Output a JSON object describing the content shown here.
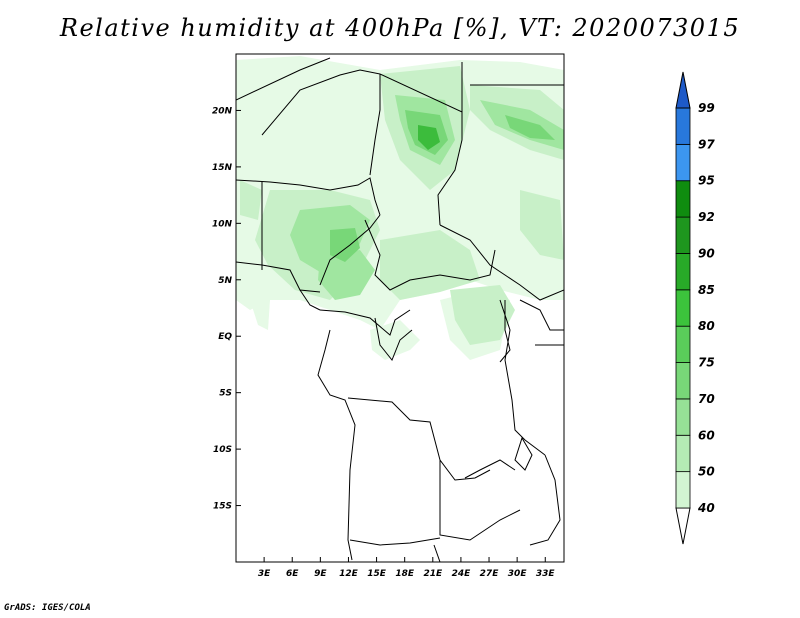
{
  "title": "Relative humidity at 400hPa [%], VT: 2020073015",
  "credit": "GrADS: IGES/COLA",
  "map": {
    "lon_range": [
      0,
      35
    ],
    "lat_range": [
      -20,
      25
    ],
    "lon_ticks": [
      "3E",
      "6E",
      "9E",
      "12E",
      "15E",
      "18E",
      "21E",
      "24E",
      "27E",
      "30E",
      "33E"
    ],
    "lat_ticks": [
      "20N",
      "15N",
      "10N",
      "5N",
      "EQ",
      "5S",
      "10S",
      "15S"
    ],
    "fill_colors": {
      "40": "#e6fae6",
      "50": "#c8f0c8",
      "60": "#a0e6a0",
      "70": "#78d778",
      "85": "#3cbc3c",
      "92": "#1e961e"
    }
  },
  "colorbar": {
    "labels": [
      "40",
      "50",
      "60",
      "70",
      "75",
      "80",
      "85",
      "90",
      "92",
      "95",
      "97",
      "99"
    ],
    "colors": [
      "#f0fcf0",
      "#d2f5d2",
      "#b4ebb4",
      "#96e196",
      "#78d778",
      "#5acd5a",
      "#3cc33c",
      "#28aa28",
      "#1e961e",
      "#0f8c0f",
      "#3c96f0",
      "#2878dc",
      "#1e5ac8"
    ]
  }
}
